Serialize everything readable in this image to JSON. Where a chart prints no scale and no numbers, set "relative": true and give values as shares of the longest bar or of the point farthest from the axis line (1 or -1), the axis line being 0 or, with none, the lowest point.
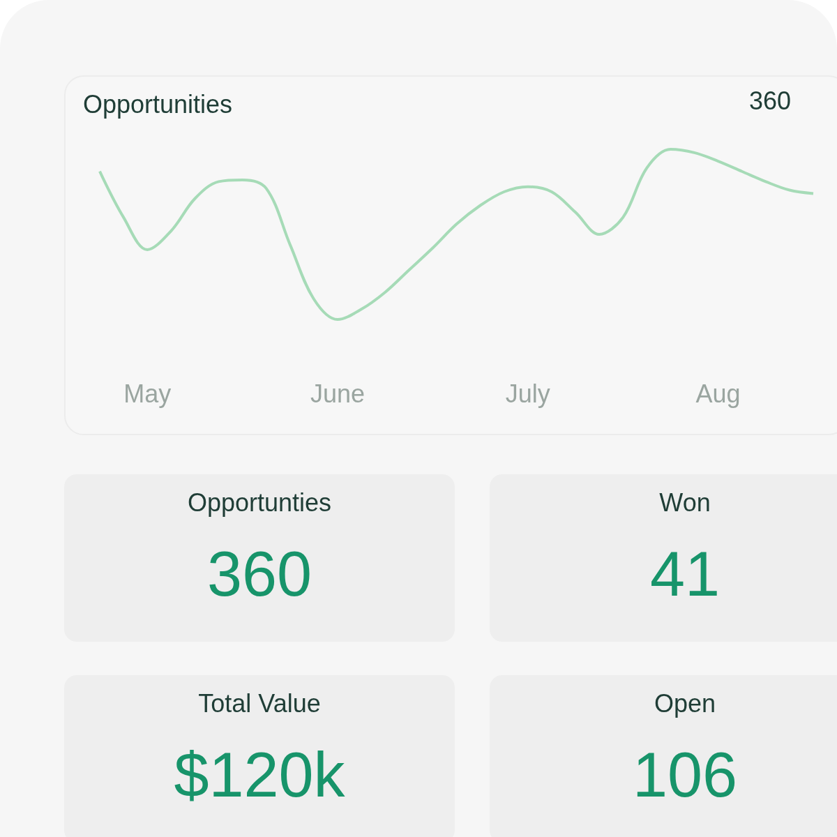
{
  "chart_data": [
    {
      "type": "line",
      "title": "Opportunities",
      "annotations": [
        "360"
      ],
      "relative": true,
      "marker": "none",
      "categories": [
        null,
        null,
        "May",
        null,
        null,
        null,
        null,
        null,
        null,
        null,
        "June",
        null,
        null,
        null,
        null,
        null,
        null,
        null,
        "July",
        null,
        null,
        null,
        null,
        null,
        null,
        null,
        "Aug",
        null,
        null,
        null,
        null
      ],
      "series": [
        {
          "color": "#a6dbb7",
          "values": [
            0.87,
            0.6,
            0.41,
            0.52,
            0.71,
            0.81,
            0.82,
            0.77,
            0.44,
            0.12,
            0,
            0.06,
            0.16,
            0.29,
            0.42,
            0.56,
            0.67,
            0.75,
            0.78,
            0.75,
            0.63,
            0.5,
            0.6,
            0.89,
            1,
            0.98,
            0.93,
            0.87,
            0.81,
            0.76,
            0.74
          ]
        }
      ]
    },
    {
      "type": "other",
      "title": "Opportunties",
      "annotations": [
        "360"
      ]
    },
    {
      "type": "other",
      "title": "Won",
      "annotations": [
        "41"
      ]
    },
    {
      "type": "other",
      "title": "Total Value",
      "annotations": [
        "$120k"
      ]
    },
    {
      "type": "other",
      "title": "Open",
      "annotations": [
        "106"
      ]
    }
  ]
}
